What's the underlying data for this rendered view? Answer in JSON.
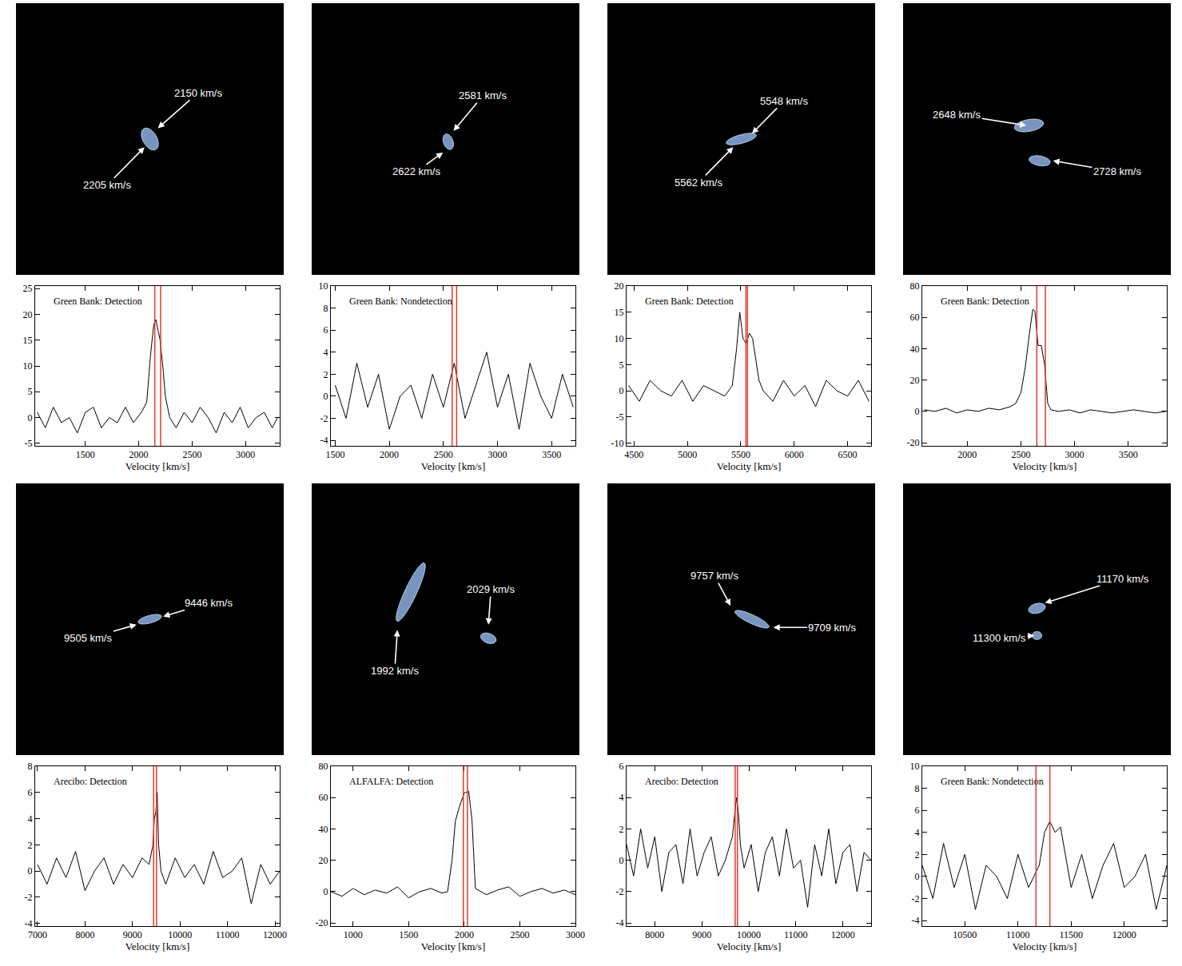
{
  "chart_data": [
    {
      "type": "line",
      "label": "Green Bank: Detection",
      "xlabel": "Velocity [km/s]",
      "color": "#000000",
      "grid": false,
      "xlim": [
        1030,
        3320
      ],
      "xticks": [
        1500,
        2000,
        2500,
        3000
      ],
      "ylim": [
        -5.5,
        25.5
      ],
      "yticks": [
        -5,
        0,
        5,
        10,
        15,
        20,
        25
      ],
      "x": [
        1050,
        1125,
        1200,
        1275,
        1350,
        1425,
        1500,
        1575,
        1650,
        1725,
        1800,
        1875,
        1950,
        2025,
        2075,
        2110,
        2140,
        2160,
        2180,
        2200,
        2225,
        2250,
        2290,
        2350,
        2425,
        2500,
        2575,
        2650,
        2725,
        2800,
        2875,
        2950,
        3025,
        3100,
        3175,
        3250,
        3300
      ],
      "values": [
        1,
        -2,
        2,
        -1,
        0,
        -3,
        1,
        2,
        -2,
        0,
        -1,
        2,
        -1,
        1,
        3,
        12,
        18,
        19,
        17,
        15,
        10,
        4,
        0,
        -2,
        1,
        -1,
        2,
        0,
        -3,
        1,
        -1,
        2,
        -2,
        0,
        1,
        -2,
        0
      ],
      "lines": [
        {
          "value": 2150,
          "label": "2150 km/s",
          "color": "#e8392a"
        },
        {
          "value": 2205,
          "label": "2205 km/s",
          "color": "#e8392a"
        }
      ]
    },
    {
      "type": "line",
      "label": "Green Bank: Nondetection",
      "xlabel": "Velocity [km/s]",
      "color": "#000000",
      "grid": false,
      "xlim": [
        1460,
        3720
      ],
      "xticks": [
        1500,
        2000,
        2500,
        3000,
        3500
      ],
      "ylim": [
        -4.5,
        10
      ],
      "yticks": [
        -4,
        -2,
        0,
        2,
        4,
        6,
        8,
        10
      ],
      "x": [
        1500,
        1600,
        1700,
        1800,
        1900,
        2000,
        2100,
        2200,
        2300,
        2400,
        2500,
        2600,
        2700,
        2800,
        2900,
        3000,
        3100,
        3200,
        3300,
        3400,
        3500,
        3600,
        3700
      ],
      "values": [
        1,
        -2,
        3,
        -1,
        2,
        -3,
        0,
        1,
        -2,
        2,
        -1,
        3,
        -2,
        1,
        4,
        -1,
        2,
        -3,
        3,
        0,
        -2,
        2,
        -1
      ],
      "lines": [
        {
          "value": 2581,
          "label": "2581 km/s",
          "color": "#e8392a"
        },
        {
          "value": 2622,
          "label": "2622 km/s",
          "color": "#e8392a"
        }
      ]
    },
    {
      "type": "line",
      "label": "Green Bank: Detection",
      "xlabel": "Velocity [km/s]",
      "color": "#000000",
      "grid": false,
      "xlim": [
        4430,
        6720
      ],
      "xticks": [
        4500,
        5000,
        5500,
        6000,
        6500
      ],
      "ylim": [
        -10.5,
        20
      ],
      "yticks": [
        -10,
        -5,
        0,
        5,
        10,
        15,
        20
      ],
      "x": [
        4450,
        4550,
        4650,
        4750,
        4850,
        4950,
        5050,
        5150,
        5250,
        5350,
        5420,
        5460,
        5490,
        5520,
        5550,
        5580,
        5610,
        5640,
        5670,
        5710,
        5800,
        5900,
        6000,
        6100,
        6200,
        6300,
        6400,
        6500,
        6600,
        6700
      ],
      "values": [
        1,
        -2,
        2,
        0,
        -1,
        2,
        -2,
        1,
        0,
        -1,
        1,
        8,
        15,
        10,
        9,
        11,
        10,
        6,
        2,
        0,
        -2,
        2,
        -1,
        1,
        -3,
        2,
        0,
        -1,
        2,
        -2
      ],
      "lines": [
        {
          "value": 5548,
          "label": "5548 km/s",
          "color": "#e8392a"
        },
        {
          "value": 5562,
          "label": "5562 km/s",
          "color": "#e8392a"
        }
      ]
    },
    {
      "type": "line",
      "label": "Green Bank: Detection",
      "xlabel": "Velocity [km/s]",
      "color": "#000000",
      "grid": false,
      "xlim": [
        1580,
        3860
      ],
      "xticks": [
        2000,
        2500,
        3000,
        3500
      ],
      "ylim": [
        -22,
        80
      ],
      "yticks": [
        -20,
        0,
        20,
        40,
        60,
        80
      ],
      "x": [
        1600,
        1700,
        1800,
        1900,
        2000,
        2100,
        2200,
        2300,
        2400,
        2450,
        2500,
        2540,
        2580,
        2610,
        2630,
        2660,
        2690,
        2720,
        2750,
        2780,
        2850,
        2950,
        3050,
        3150,
        3250,
        3350,
        3450,
        3550,
        3650,
        3750,
        3850
      ],
      "values": [
        1,
        0,
        2,
        -1,
        1,
        0,
        2,
        1,
        3,
        5,
        12,
        28,
        50,
        65,
        64,
        42,
        42,
        30,
        5,
        1,
        0,
        1,
        -1,
        1,
        0,
        -1,
        0,
        1,
        0,
        -1,
        0
      ],
      "lines": [
        {
          "value": 2648,
          "label": "2648 km/s",
          "color": "#e8392a"
        },
        {
          "value": 2728,
          "label": "2728 km/s",
          "color": "#e8392a"
        }
      ]
    },
    {
      "type": "line",
      "label": "Arecibo: Detection",
      "xlabel": "Velocity [km/s]",
      "color": "#000000",
      "grid": false,
      "xlim": [
        6950,
        12100
      ],
      "xticks": [
        7000,
        8000,
        9000,
        10000,
        11000,
        12000
      ],
      "ylim": [
        -4.2,
        8
      ],
      "yticks": [
        -4,
        -2,
        0,
        2,
        4,
        6,
        8
      ],
      "x": [
        7000,
        7200,
        7400,
        7600,
        7800,
        8000,
        8200,
        8400,
        8600,
        8800,
        9000,
        9200,
        9350,
        9430,
        9460,
        9490,
        9520,
        9550,
        9600,
        9700,
        9900,
        10100,
        10300,
        10500,
        10700,
        10900,
        11100,
        11300,
        11500,
        11700,
        11900,
        12100
      ],
      "values": [
        0.5,
        -1,
        1,
        -0.5,
        1.5,
        -1.5,
        0,
        1,
        -1,
        0.5,
        -0.5,
        1,
        0.5,
        2,
        4,
        4.5,
        6,
        2,
        0,
        -1,
        1,
        -0.5,
        0.5,
        -1,
        1.5,
        -0.5,
        0,
        1,
        -2.5,
        0.5,
        -1,
        0
      ],
      "lines": [
        {
          "value": 9446,
          "label": "9446 km/s",
          "color": "#e8392a"
        },
        {
          "value": 9505,
          "label": "9505 km/s",
          "color": "#e8392a"
        }
      ]
    },
    {
      "type": "line",
      "label": "ALFALFA: Detection",
      "xlabel": "Velocity [km/s]",
      "color": "#000000",
      "grid": false,
      "xlim": [
        800,
        3000
      ],
      "xticks": [
        1000,
        1500,
        2000,
        2500,
        3000
      ],
      "ylim": [
        -22,
        80
      ],
      "yticks": [
        -20,
        0,
        20,
        40,
        60,
        80
      ],
      "x": [
        800,
        900,
        1000,
        1100,
        1200,
        1300,
        1400,
        1500,
        1600,
        1700,
        1800,
        1850,
        1890,
        1920,
        1960,
        2000,
        2040,
        2070,
        2100,
        2200,
        2300,
        2400,
        2500,
        2600,
        2700,
        2800,
        2900,
        3000
      ],
      "values": [
        0,
        -3,
        2,
        -2,
        1,
        -1,
        3,
        -4,
        0,
        2,
        -1,
        0,
        20,
        45,
        55,
        63,
        64,
        45,
        2,
        -2,
        1,
        3,
        -3,
        0,
        2,
        -1,
        1,
        -2
      ],
      "lines": [
        {
          "value": 1992,
          "label": "1992 km/s",
          "color": "#e8392a"
        },
        {
          "value": 2029,
          "label": "2029 km/s",
          "color": "#e8392a"
        }
      ]
    },
    {
      "type": "line",
      "label": "Arecibo: Detection",
      "xlabel": "Velocity [km/s]",
      "color": "#000000",
      "grid": false,
      "xlim": [
        7400,
        12600
      ],
      "xticks": [
        8000,
        9000,
        10000,
        11000,
        12000
      ],
      "ylim": [
        -4.2,
        6
      ],
      "yticks": [
        -4,
        -2,
        0,
        2,
        4,
        6
      ],
      "x": [
        7400,
        7550,
        7700,
        7850,
        8000,
        8150,
        8300,
        8450,
        8600,
        8750,
        8900,
        9050,
        9200,
        9350,
        9500,
        9650,
        9700,
        9740,
        9780,
        9820,
        9900,
        10050,
        10200,
        10350,
        10500,
        10650,
        10800,
        10950,
        11100,
        11250,
        11400,
        11550,
        11700,
        11850,
        12000,
        12150,
        12300,
        12450,
        12600
      ],
      "values": [
        1,
        -1,
        2,
        -0.5,
        1.5,
        -2,
        0.5,
        1,
        -1.5,
        2,
        -1,
        0.5,
        1.5,
        -1,
        0,
        1.5,
        3,
        4,
        3,
        1,
        -0.5,
        1,
        -2,
        0.5,
        1.5,
        -1,
        2,
        -0.5,
        0,
        -3,
        1,
        -1,
        2,
        -1.5,
        0.5,
        1,
        -2,
        0.5,
        0
      ],
      "lines": [
        {
          "value": 9757,
          "label": "9757 km/s",
          "color": "#e8392a"
        },
        {
          "value": 9709,
          "label": "9709 km/s",
          "color": "#e8392a"
        }
      ]
    },
    {
      "type": "line",
      "label": "Green Bank: Nondetection",
      "xlabel": "Velocity [km/s]",
      "color": "#000000",
      "grid": false,
      "xlim": [
        10100,
        12400
      ],
      "xticks": [
        10500,
        11000,
        11500,
        12000
      ],
      "ylim": [
        -4.5,
        10
      ],
      "yticks": [
        -4,
        -2,
        0,
        2,
        4,
        6,
        8,
        10
      ],
      "x": [
        10100,
        10200,
        10300,
        10400,
        10500,
        10600,
        10700,
        10800,
        10900,
        11000,
        11100,
        11200,
        11250,
        11300,
        11350,
        11400,
        11500,
        11600,
        11700,
        11800,
        11900,
        12000,
        12100,
        12200,
        12300,
        12400
      ],
      "values": [
        1,
        -2,
        3,
        -1,
        2,
        -3,
        1,
        0,
        -2,
        2,
        -1,
        1,
        4,
        5,
        4,
        4.5,
        -1,
        2,
        -2,
        1,
        3,
        -1,
        0,
        2,
        -3,
        1
      ],
      "lines": [
        {
          "value": 11170,
          "label": "11170 km/s",
          "color": "#e8392a"
        },
        {
          "value": 11300,
          "label": "11300 km/s",
          "color": "#e8392a"
        }
      ]
    }
  ]
}
